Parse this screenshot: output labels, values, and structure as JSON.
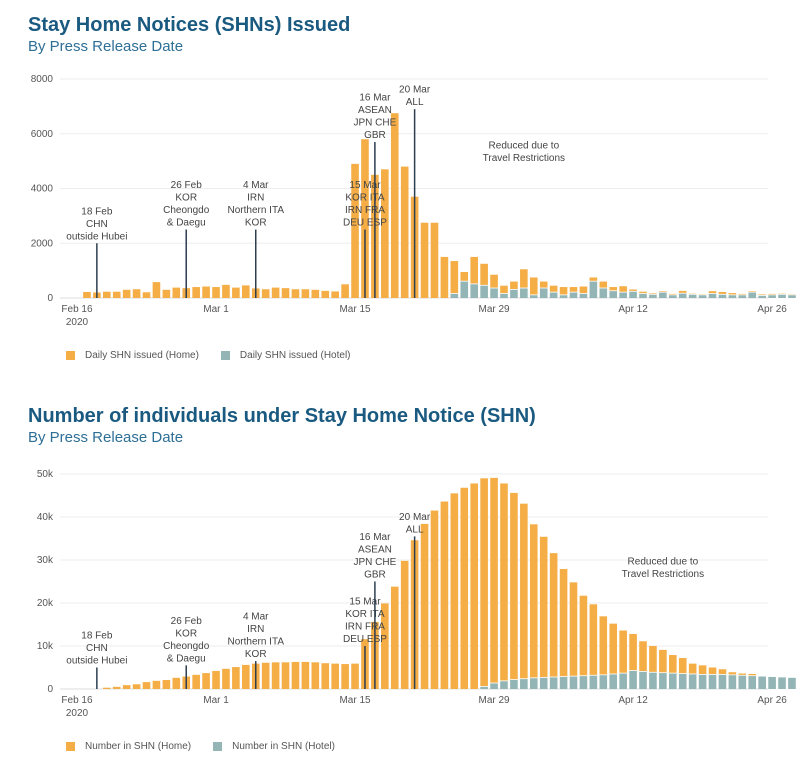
{
  "colors": {
    "home": "#f5ad45",
    "hotel": "#93b5b5",
    "title": "#1a5a80",
    "subtitle": "#2e6f96",
    "marker": "#2c3e50",
    "grid": "#eeeeee"
  },
  "chart_data": [
    {
      "type": "bar",
      "stacked": true,
      "title": "Stay Home Notices (SHNs) Issued",
      "subtitle": "By Press Release Date",
      "xlabel": "",
      "ylabel": "",
      "ylim": [
        0,
        8000
      ],
      "yticks": [
        0,
        2000,
        4000,
        6000,
        8000
      ],
      "ytick_labels": [
        "0",
        "2000",
        "4000",
        "6000",
        "8000"
      ],
      "x_start": "2020-02-17",
      "xticks": [
        {
          "day": 0,
          "label": "Feb 16",
          "sub": "2020"
        },
        {
          "day": 14,
          "label": "Mar 1",
          "sub": ""
        },
        {
          "day": 28,
          "label": "Mar 15",
          "sub": ""
        },
        {
          "day": 42,
          "label": "Mar 29",
          "sub": ""
        },
        {
          "day": 56,
          "label": "Apr 12",
          "sub": ""
        },
        {
          "day": 70,
          "label": "Apr 26",
          "sub": ""
        }
      ],
      "series": [
        {
          "name": "Daily SHN issued (Home)",
          "color": "#f5ad45",
          "values": [
            220,
            200,
            230,
            230,
            300,
            320,
            210,
            580,
            300,
            380,
            360,
            400,
            420,
            400,
            480,
            380,
            460,
            350,
            320,
            380,
            360,
            320,
            320,
            300,
            260,
            240,
            500,
            4900,
            5800,
            4500,
            4700,
            6750,
            4800,
            3700,
            2750,
            2750,
            1500,
            1200,
            350,
            1000,
            800,
            500,
            300,
            300,
            700,
            650,
            250,
            250,
            300,
            200,
            270,
            150,
            250,
            150,
            230,
            80,
            80,
            50,
            50,
            50,
            100,
            40,
            40,
            100,
            100,
            80,
            50,
            50,
            50,
            50,
            40,
            40
          ]
        },
        {
          "name": "Daily SHN issued (Hotel)",
          "color": "#93b5b5",
          "values": [
            0,
            0,
            0,
            0,
            0,
            0,
            0,
            0,
            0,
            0,
            0,
            0,
            0,
            0,
            0,
            0,
            0,
            0,
            0,
            0,
            0,
            0,
            0,
            0,
            0,
            0,
            0,
            0,
            0,
            0,
            0,
            0,
            0,
            0,
            0,
            0,
            0,
            150,
            600,
            500,
            450,
            350,
            150,
            300,
            350,
            100,
            350,
            200,
            100,
            200,
            150,
            600,
            350,
            250,
            200,
            230,
            150,
            120,
            200,
            100,
            160,
            120,
            100,
            150,
            120,
            100,
            100,
            200,
            80,
            100,
            120,
            100
          ]
        }
      ],
      "legend": "bottom-left",
      "annotations": [
        {
          "day": 2,
          "lines": [
            "18 Feb",
            "CHN",
            "outside Hubei"
          ],
          "top": 2000
        },
        {
          "day": 10,
          "lines": [
            "26 Feb",
            "KOR",
            "Cheongdo",
            "& Daegu"
          ],
          "top": 2500
        },
        {
          "day": 17,
          "lines": [
            "4 Mar",
            "IRN",
            "Northern ITA",
            "KOR"
          ],
          "top": 2500
        },
        {
          "day": 28,
          "lines": [
            "15 Mar",
            "KOR  ITA",
            "IRN  FRA",
            "DEU  ESP"
          ],
          "top": 2500
        },
        {
          "day": 29,
          "lines": [
            "16 Mar",
            "ASEAN",
            "JPN  CHE",
            "GBR"
          ],
          "top": 5700
        },
        {
          "day": 33,
          "lines": [
            "20 Mar",
            "ALL"
          ],
          "top": 6900
        },
        {
          "day": 44,
          "lines": [
            "Reduced due to",
            "Travel Restrictions"
          ],
          "top": null,
          "label_y": 5000
        }
      ]
    },
    {
      "type": "bar",
      "stacked": true,
      "title": "Number of individuals under Stay Home Notice (SHN)",
      "subtitle": "By Press Release Date",
      "xlabel": "",
      "ylabel": "",
      "ylim": [
        0,
        52000
      ],
      "yticks": [
        0,
        10000,
        20000,
        30000,
        40000,
        50000
      ],
      "ytick_labels": [
        "0",
        "10k",
        "20k",
        "30k",
        "40k",
        "50k"
      ],
      "x_start": "2020-02-17",
      "xticks": [
        {
          "day": 0,
          "label": "Feb 16",
          "sub": "2020"
        },
        {
          "day": 14,
          "label": "Mar 1",
          "sub": ""
        },
        {
          "day": 28,
          "label": "Mar 15",
          "sub": ""
        },
        {
          "day": 42,
          "label": "Mar 29",
          "sub": ""
        },
        {
          "day": 56,
          "label": "Apr 12",
          "sub": ""
        },
        {
          "day": 70,
          "label": "Apr 26",
          "sub": ""
        }
      ],
      "series": [
        {
          "name": "Number in SHN (Home)",
          "color": "#f5ad45",
          "values": [
            0,
            0,
            300,
            500,
            900,
            1100,
            1600,
            1900,
            2100,
            2600,
            2900,
            3300,
            3700,
            4200,
            4700,
            5100,
            5600,
            5900,
            6100,
            6200,
            6200,
            6300,
            6300,
            6200,
            6000,
            5900,
            5800,
            5900,
            11600,
            15600,
            19900,
            23800,
            29800,
            34600,
            38400,
            41500,
            43600,
            45500,
            46800,
            47800,
            48500,
            47800,
            46000,
            43500,
            40800,
            35800,
            32800,
            28900,
            25100,
            21900,
            18700,
            16600,
            13700,
            11800,
            10000,
            8600,
            7100,
            6200,
            5400,
            4300,
            3700,
            2500,
            2200,
            1700,
            1300,
            700,
            500,
            500,
            0,
            0,
            0,
            0
          ]
        },
        {
          "name": "Number in SHN (Hotel)",
          "color": "#93b5b5",
          "values": [
            0,
            0,
            0,
            0,
            0,
            0,
            0,
            0,
            0,
            0,
            0,
            0,
            0,
            0,
            0,
            0,
            0,
            0,
            0,
            0,
            0,
            0,
            0,
            0,
            0,
            0,
            0,
            0,
            0,
            0,
            0,
            0,
            0,
            0,
            0,
            0,
            0,
            0,
            0,
            0,
            500,
            1300,
            1800,
            2100,
            2300,
            2500,
            2600,
            2700,
            2800,
            2900,
            3000,
            3100,
            3200,
            3400,
            3600,
            4200,
            4000,
            3800,
            3700,
            3600,
            3500,
            3400,
            3300,
            3300,
            3300,
            3200,
            3100,
            3000,
            2900,
            2800,
            2700,
            2600
          ]
        }
      ],
      "legend": "bottom-left",
      "annotations": [
        {
          "day": 2,
          "lines": [
            "18 Feb",
            "CHN",
            "outside Hubei"
          ],
          "top": 5000
        },
        {
          "day": 10,
          "lines": [
            "26 Feb",
            "KOR",
            "Cheongdo",
            "& Daegu"
          ],
          "top": 5500
        },
        {
          "day": 17,
          "lines": [
            "4 Mar",
            "IRN",
            "Northern ITA",
            "KOR"
          ],
          "top": 6500
        },
        {
          "day": 28,
          "lines": [
            "15 Mar",
            "KOR  ITA",
            "IRN  FRA",
            "DEU  ESP"
          ],
          "top": 10000
        },
        {
          "day": 29,
          "lines": [
            "16 Mar",
            "ASEAN",
            "JPN  CHE",
            "GBR"
          ],
          "top": 25000
        },
        {
          "day": 33,
          "lines": [
            "20 Mar",
            "ALL"
          ],
          "top": 35500
        },
        {
          "day": 58,
          "lines": [
            "Reduced due to",
            "Travel Restrictions"
          ],
          "top": null,
          "label_y": 26000
        }
      ]
    }
  ]
}
